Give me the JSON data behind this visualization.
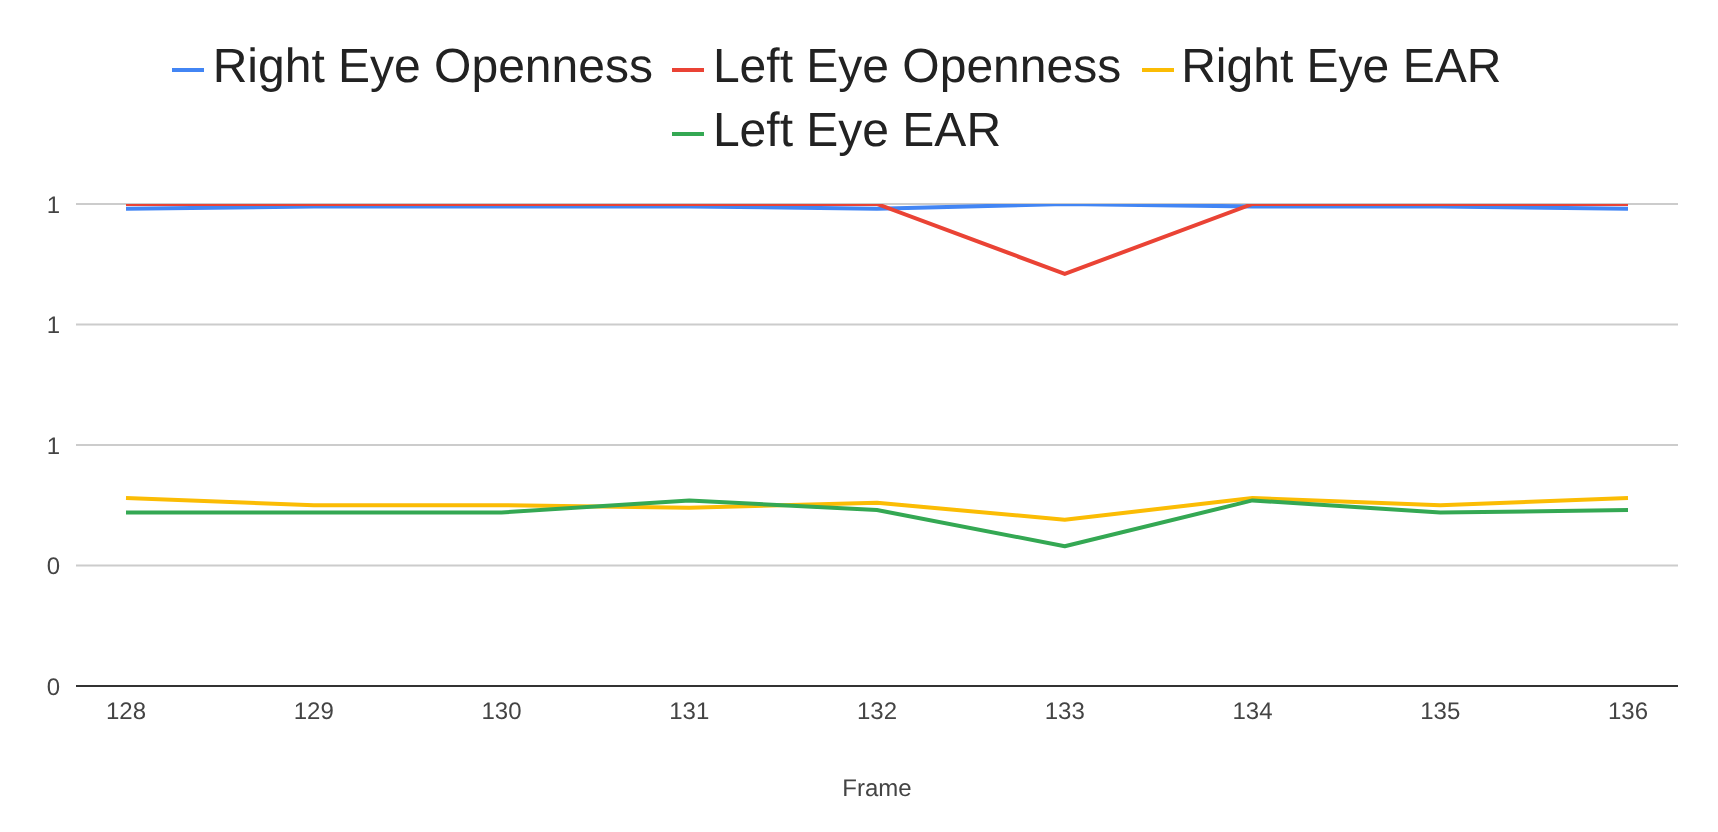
{
  "chart_data": {
    "type": "line",
    "xlabel": "Frame",
    "categories": [
      "128",
      "129",
      "130",
      "131",
      "132",
      "133",
      "134",
      "135",
      "136"
    ],
    "series": [
      {
        "name": "Right Eye Openness",
        "color": "#4285f4",
        "values": [
          0.99,
          0.995,
          0.995,
          0.995,
          0.99,
          1.0,
          0.995,
          0.995,
          0.99
        ]
      },
      {
        "name": "Left Eye Openness",
        "color": "#ea4335",
        "values": [
          1.0,
          1.0,
          1.0,
          1.0,
          1.0,
          0.855,
          1.0,
          1.0,
          1.0
        ]
      },
      {
        "name": "Right Eye EAR",
        "color": "#fbbc04",
        "values": [
          0.39,
          0.375,
          0.375,
          0.37,
          0.38,
          0.345,
          0.39,
          0.375,
          0.39
        ]
      },
      {
        "name": "Left Eye EAR",
        "color": "#34a853",
        "values": [
          0.36,
          0.36,
          0.36,
          0.385,
          0.365,
          0.29,
          0.385,
          0.36,
          0.365
        ]
      }
    ],
    "ylim": [
      0,
      1
    ],
    "yticks": [
      {
        "value": 0,
        "label": "0"
      },
      {
        "value": 0.25,
        "label": "0"
      },
      {
        "value": 0.5,
        "label": "1"
      },
      {
        "value": 0.75,
        "label": "1"
      },
      {
        "value": 1,
        "label": "1"
      }
    ],
    "grid": "y",
    "legend": "top",
    "marker": "none",
    "line_style": "solid"
  }
}
